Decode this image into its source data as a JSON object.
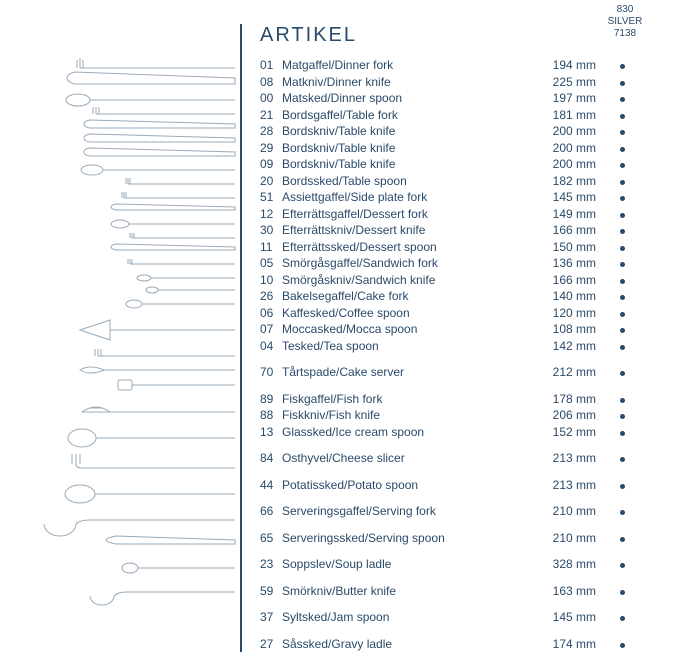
{
  "title": "ARTIKEL",
  "column_header": {
    "line1": "830",
    "line2": "SILVER",
    "line3": "7138"
  },
  "text_color": "#2a4a6a",
  "illustration_stroke": "#9aaab8",
  "background_color": "#ffffff",
  "unit": "mm",
  "groups": [
    {
      "rows": [
        {
          "code": "01",
          "name": "Matgaffel/Dinner fork",
          "size": 194,
          "dot": true
        },
        {
          "code": "08",
          "name": "Matkniv/Dinner knife",
          "size": 225,
          "dot": true
        },
        {
          "code": "00",
          "name": "Matsked/Dinner spoon",
          "size": 197,
          "dot": true
        },
        {
          "code": "21",
          "name": "Bordsgaffel/Table fork",
          "size": 181,
          "dot": true
        },
        {
          "code": "28",
          "name": "Bordskniv/Table knife",
          "size": 200,
          "dot": true
        },
        {
          "code": "29",
          "name": "Bordskniv/Table knife",
          "size": 200,
          "dot": true
        },
        {
          "code": "09",
          "name": "Bordskniv/Table knife",
          "size": 200,
          "dot": true
        },
        {
          "code": "20",
          "name": "Bordssked/Table spoon",
          "size": 182,
          "dot": true
        },
        {
          "code": "51",
          "name": "Assiettgaffel/Side plate fork",
          "size": 145,
          "dot": true
        },
        {
          "code": "12",
          "name": "Efterrättsgaffel/Dessert fork",
          "size": 149,
          "dot": true
        },
        {
          "code": "30",
          "name": "Efterrättskniv/Dessert knife",
          "size": 166,
          "dot": true
        },
        {
          "code": "11",
          "name": "Efterrättssked/Dessert spoon",
          "size": 150,
          "dot": true
        },
        {
          "code": "05",
          "name": "Smörgåsgaffel/Sandwich fork",
          "size": 136,
          "dot": true
        },
        {
          "code": "10",
          "name": "Smörgåskniv/Sandwich knife",
          "size": 166,
          "dot": true
        },
        {
          "code": "26",
          "name": "Bakelsegaffel/Cake fork",
          "size": 140,
          "dot": true
        },
        {
          "code": "06",
          "name": "Kaffesked/Coffee spoon",
          "size": 120,
          "dot": true
        },
        {
          "code": "07",
          "name": "Moccasked/Mocca spoon",
          "size": 108,
          "dot": true
        },
        {
          "code": "04",
          "name": "Tesked/Tea spoon",
          "size": 142,
          "dot": true
        }
      ]
    },
    {
      "rows": [
        {
          "code": "70",
          "name": "Tårtspade/Cake server",
          "size": 212,
          "dot": true
        }
      ]
    },
    {
      "rows": [
        {
          "code": "89",
          "name": "Fiskgaffel/Fish fork",
          "size": 178,
          "dot": true
        },
        {
          "code": "88",
          "name": "Fiskkniv/Fish knife",
          "size": 206,
          "dot": true
        },
        {
          "code": "13",
          "name": "Glassked/Ice cream spoon",
          "size": 152,
          "dot": true
        }
      ]
    },
    {
      "rows": [
        {
          "code": "84",
          "name": "Osthyvel/Cheese slicer",
          "size": 213,
          "dot": true
        }
      ]
    },
    {
      "rows": [
        {
          "code": "44",
          "name": "Potatissked/Potato spoon",
          "size": 213,
          "dot": true
        }
      ]
    },
    {
      "rows": [
        {
          "code": "66",
          "name": "Serveringsgaffel/Serving fork",
          "size": 210,
          "dot": true
        }
      ]
    },
    {
      "rows": [
        {
          "code": "65",
          "name": "Serveringssked/Serving spoon",
          "size": 210,
          "dot": true
        }
      ]
    },
    {
      "rows": [
        {
          "code": "23",
          "name": "Soppslev/Soup ladle",
          "size": 328,
          "dot": true
        }
      ]
    },
    {
      "rows": [
        {
          "code": "59",
          "name": "Smörkniv/Butter knife",
          "size": 163,
          "dot": true
        }
      ]
    },
    {
      "rows": [
        {
          "code": "37",
          "name": "Syltsked/Jam spoon",
          "size": 145,
          "dot": true
        }
      ]
    },
    {
      "rows": [
        {
          "code": "27",
          "name": "Såssked/Gravy ladle",
          "size": 174,
          "dot": true
        }
      ]
    }
  ]
}
